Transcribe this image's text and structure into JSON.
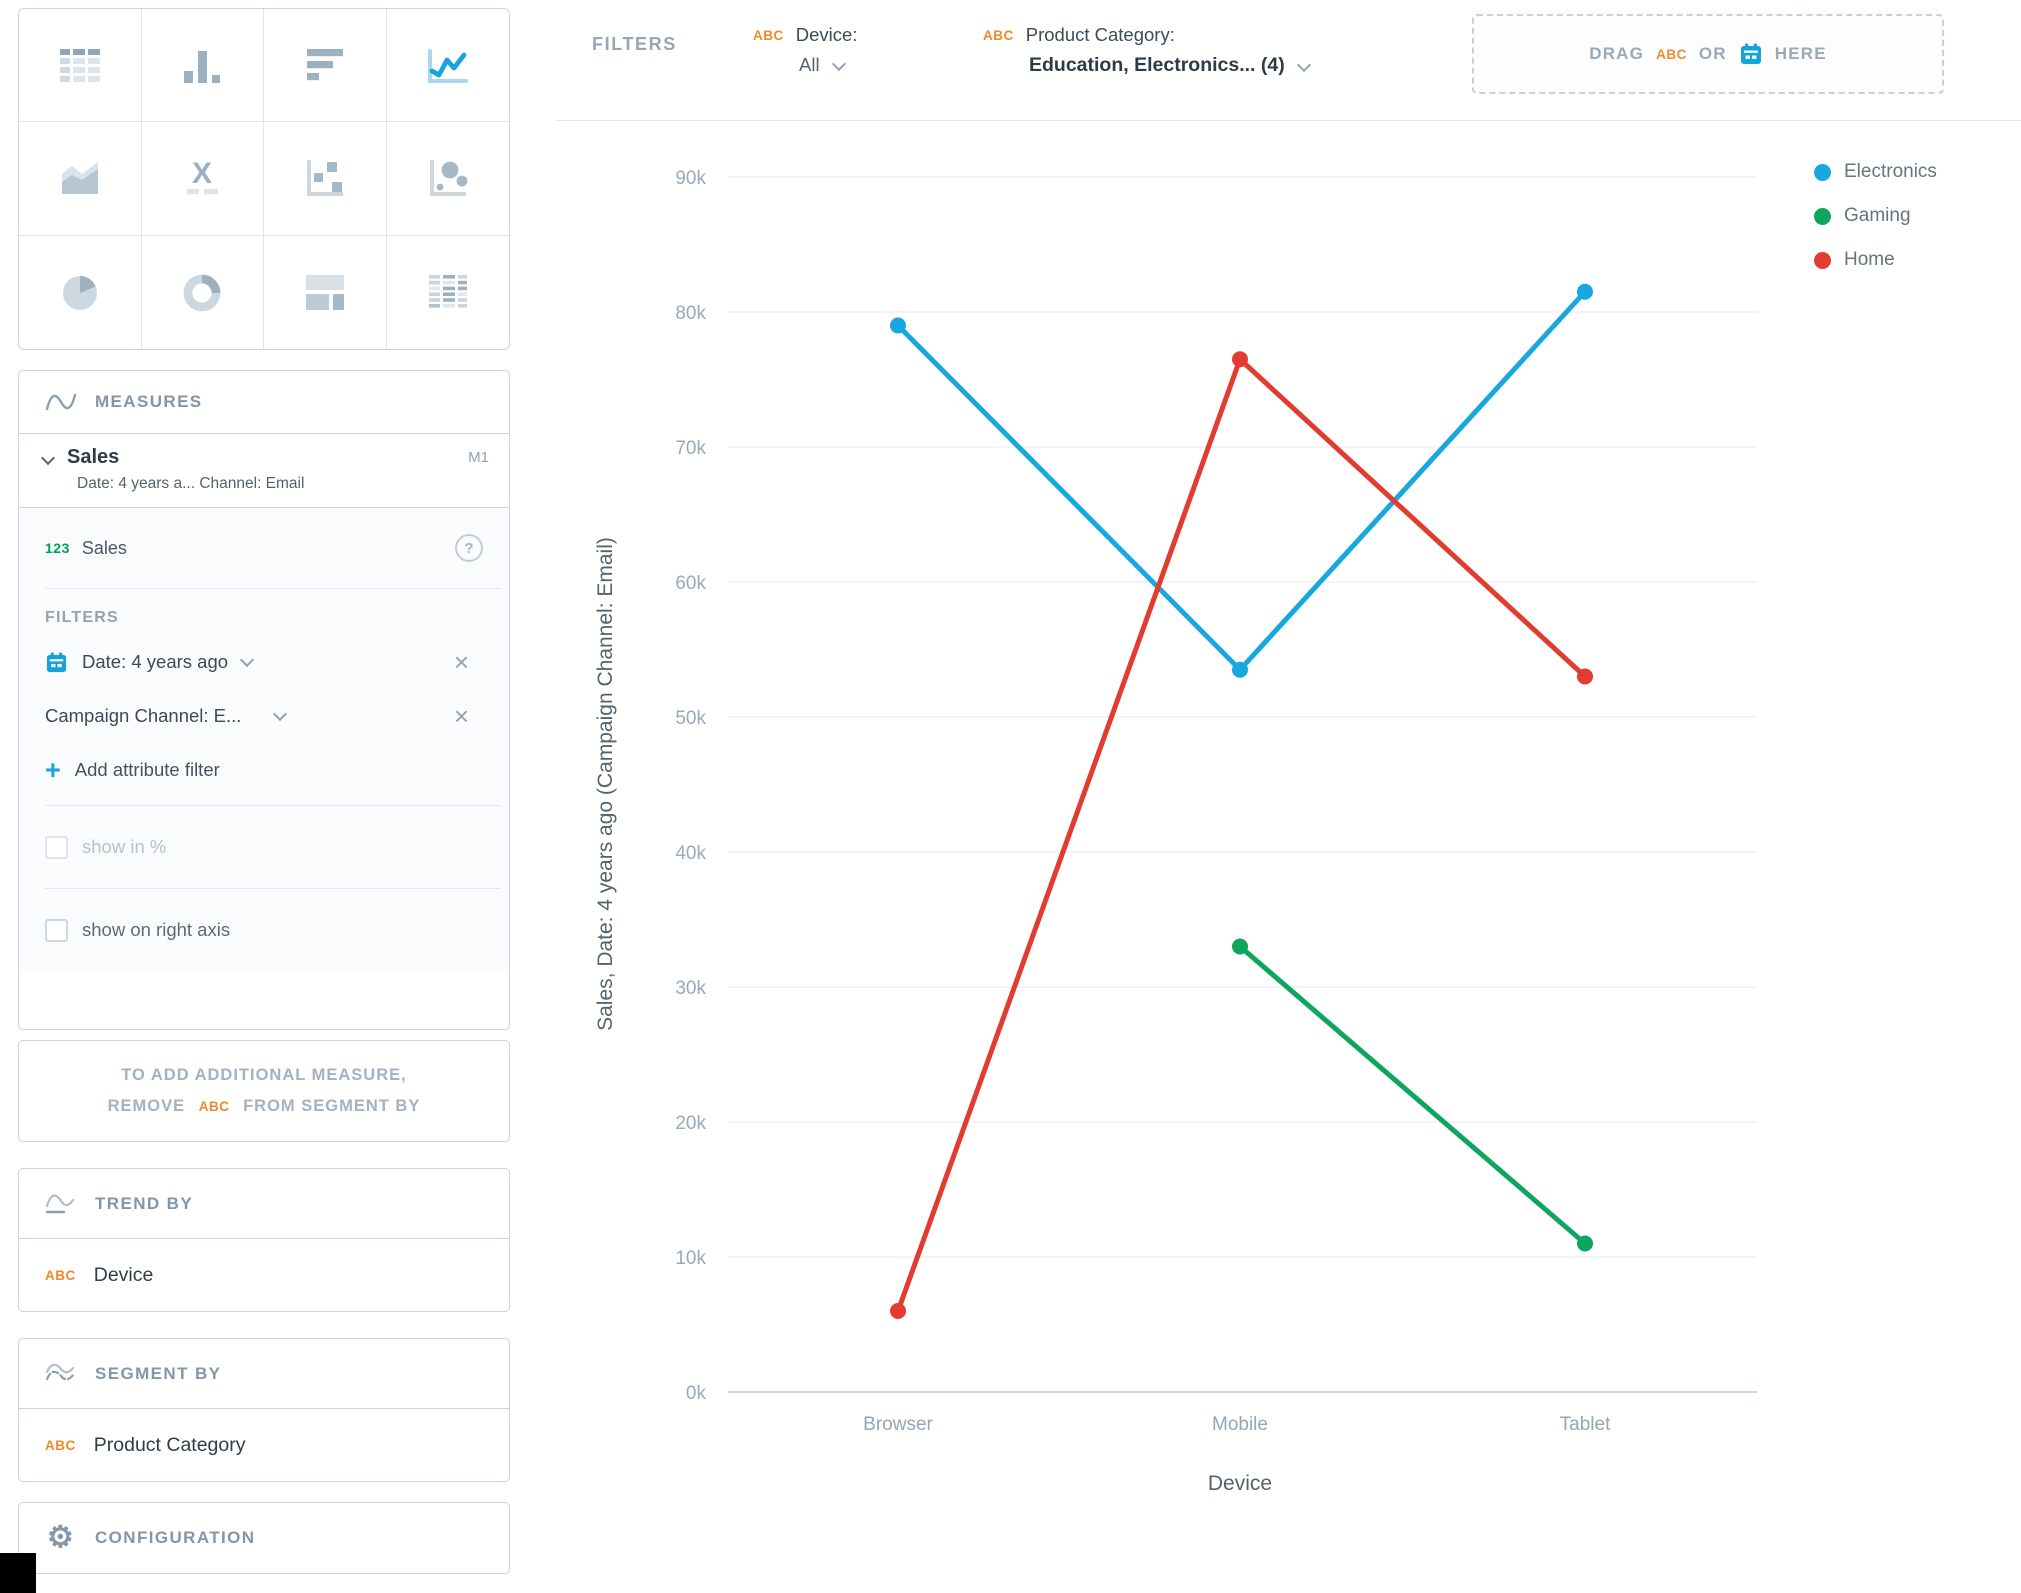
{
  "top_bar": {
    "filters_label": "FILTERS",
    "device": {
      "abc": "ABC",
      "label": "Device:",
      "value": "All"
    },
    "category": {
      "abc": "ABC",
      "label": "Product Category:",
      "value": "Education, Electronics... (4)"
    },
    "dropzone": {
      "drag": "DRAG",
      "abc": "ABC",
      "or": "OR",
      "here": "HERE"
    }
  },
  "sidebar": {
    "viz_types": [
      "table",
      "column-chart",
      "bar-chart",
      "line-chart",
      "area-chart",
      "headline",
      "scatter-plot",
      "bubble-chart",
      "pie-chart",
      "donut-chart",
      "treemap",
      "heatmap"
    ],
    "selected_viz": "line-chart",
    "measures": {
      "title": "MEASURES",
      "measure_name": "Sales",
      "measure_badge": "M1",
      "measure_subtitle": "Date: 4 years a... Channel: Email",
      "item_type": "123",
      "item_name": "Sales",
      "filters_label": "FILTERS",
      "filter1": "Date: 4 years ago",
      "filter2": "Campaign Channel: E...",
      "add_filter": "Add attribute filter",
      "show_in_percent": "show in %",
      "show_on_right_axis": "show on right axis"
    },
    "notice": {
      "line1": "TO ADD ADDITIONAL MEASURE,",
      "remove": "REMOVE",
      "abc": "ABC",
      "rest": "FROM SEGMENT BY"
    },
    "trend_by": {
      "title": "TREND BY",
      "abc": "ABC",
      "value": "Device"
    },
    "segment_by": {
      "title": "SEGMENT BY",
      "abc": "ABC",
      "value": "Product Category"
    },
    "configuration": {
      "title": "CONFIGURATION"
    }
  },
  "chart_data": {
    "type": "line",
    "categories": [
      "Browser",
      "Mobile",
      "Tablet"
    ],
    "series": [
      {
        "name": "Electronics",
        "color": "#17a8e0",
        "values": [
          79000,
          53500,
          81500
        ]
      },
      {
        "name": "Gaming",
        "color": "#0ea55f",
        "values": [
          null,
          33000,
          11000
        ]
      },
      {
        "name": "Home",
        "color": "#e23b30",
        "values": [
          6000,
          76500,
          53000
        ]
      }
    ],
    "xlabel": "Device",
    "ylabel": "Sales, Date: 4 years ago (Campaign Channel: Email)",
    "ylim": [
      0,
      90000
    ],
    "ytick_step": 10000,
    "ytick_labels": [
      "0k",
      "10k",
      "20k",
      "30k",
      "40k",
      "50k",
      "60k",
      "70k",
      "80k",
      "90k"
    ],
    "grid": true,
    "legend_position": "top-right"
  }
}
